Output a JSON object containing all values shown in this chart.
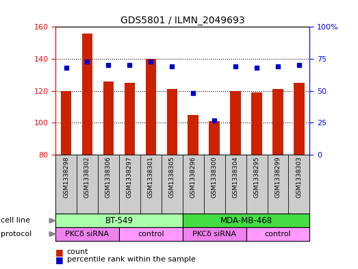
{
  "title": "GDS5801 / ILMN_2049693",
  "samples": [
    "GSM1338298",
    "GSM1338302",
    "GSM1338306",
    "GSM1338297",
    "GSM1338301",
    "GSM1338305",
    "GSM1338296",
    "GSM1338300",
    "GSM1338304",
    "GSM1338295",
    "GSM1338299",
    "GSM1338303"
  ],
  "counts": [
    120,
    156,
    126,
    125,
    140,
    121,
    105,
    101,
    120,
    119,
    121,
    125
  ],
  "percentiles": [
    68,
    73,
    70,
    70,
    73,
    69,
    48,
    27,
    69,
    68,
    69,
    70
  ],
  "ylim_left": [
    80,
    160
  ],
  "ylim_right": [
    0,
    100
  ],
  "yticks_left": [
    80,
    100,
    120,
    140,
    160
  ],
  "yticks_right": [
    0,
    25,
    50,
    75,
    100
  ],
  "ytick_labels_right": [
    "0",
    "25",
    "50",
    "75",
    "100%"
  ],
  "cell_line_groups": [
    {
      "label": "BT-549",
      "start": 0,
      "end": 6,
      "color": "#AAFFAA"
    },
    {
      "label": "MDA-MB-468",
      "start": 6,
      "end": 12,
      "color": "#44DD44"
    }
  ],
  "proto_groups": [
    {
      "label": "PKCδ siRNA",
      "start": 0,
      "end": 3,
      "color": "#EE82EE"
    },
    {
      "label": "control",
      "start": 3,
      "end": 6,
      "color": "#FF99FF"
    },
    {
      "label": "PKCδ siRNA",
      "start": 6,
      "end": 9,
      "color": "#EE82EE"
    },
    {
      "label": "control",
      "start": 9,
      "end": 12,
      "color": "#FF99FF"
    }
  ],
  "bar_color": "#CC2200",
  "dot_color": "#0000CC",
  "bar_width": 0.5,
  "sample_bg_color": "#CCCCCC",
  "gridline_color": "#000000",
  "gridline_style": ":"
}
